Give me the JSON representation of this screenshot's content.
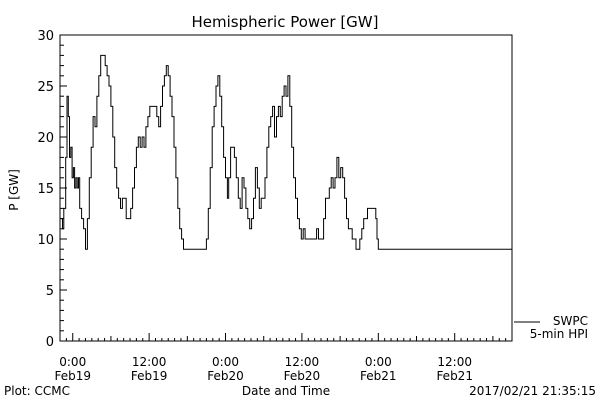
{
  "chart_data": {
    "type": "line",
    "title": "Hemispheric Power [GW]",
    "xlabel": "Date and Time",
    "ylabel": "P [GW]",
    "ylim": [
      0,
      30
    ],
    "xlim_hours": [
      -2,
      69
    ],
    "yticks": [
      0,
      5,
      10,
      15,
      20,
      25,
      30
    ],
    "x_tick_labels": [
      {
        "hour": 0,
        "time": "0:00",
        "date": "Feb19"
      },
      {
        "hour": 12,
        "time": "12:00",
        "date": "Feb19"
      },
      {
        "hour": 24,
        "time": "0:00",
        "date": "Feb20"
      },
      {
        "hour": 36,
        "time": "12:00",
        "date": "Feb20"
      },
      {
        "hour": 48,
        "time": "0:00",
        "date": "Feb21"
      },
      {
        "hour": 60,
        "time": "12:00",
        "date": "Feb21"
      }
    ],
    "legend": {
      "placement": "bottom-right",
      "entries": [
        "SWPC",
        "5-min HPI"
      ]
    },
    "series": [
      {
        "name": "SWPC",
        "color": "#000000",
        "points": [
          [
            -1.8,
            12
          ],
          [
            -1.6,
            11
          ],
          [
            -1.4,
            13
          ],
          [
            -1.1,
            18
          ],
          [
            -0.9,
            24
          ],
          [
            -0.7,
            22
          ],
          [
            -0.5,
            18
          ],
          [
            -0.3,
            19
          ],
          [
            -0.1,
            16
          ],
          [
            0.1,
            17
          ],
          [
            0.3,
            15
          ],
          [
            0.5,
            16
          ],
          [
            0.7,
            15
          ],
          [
            0.9,
            16
          ],
          [
            1.1,
            13
          ],
          [
            1.4,
            12
          ],
          [
            1.7,
            11
          ],
          [
            2.0,
            9
          ],
          [
            2.3,
            12
          ],
          [
            2.6,
            16
          ],
          [
            2.9,
            19
          ],
          [
            3.2,
            22
          ],
          [
            3.5,
            21
          ],
          [
            3.8,
            24
          ],
          [
            4.1,
            26
          ],
          [
            4.4,
            28
          ],
          [
            4.8,
            28
          ],
          [
            5.1,
            27
          ],
          [
            5.4,
            26
          ],
          [
            5.7,
            25
          ],
          [
            6.0,
            23
          ],
          [
            6.3,
            20
          ],
          [
            6.6,
            17
          ],
          [
            6.9,
            15
          ],
          [
            7.2,
            14
          ],
          [
            7.5,
            13
          ],
          [
            7.8,
            14
          ],
          [
            8.1,
            14
          ],
          [
            8.4,
            12
          ],
          [
            8.8,
            12
          ],
          [
            9.1,
            13
          ],
          [
            9.4,
            15
          ],
          [
            9.7,
            17
          ],
          [
            10.0,
            19
          ],
          [
            10.3,
            20
          ],
          [
            10.6,
            19
          ],
          [
            10.9,
            20
          ],
          [
            11.2,
            19
          ],
          [
            11.5,
            21
          ],
          [
            11.8,
            22
          ],
          [
            12.1,
            23
          ],
          [
            12.5,
            23
          ],
          [
            12.9,
            23
          ],
          [
            13.2,
            22
          ],
          [
            13.5,
            21
          ],
          [
            13.8,
            23
          ],
          [
            14.1,
            25
          ],
          [
            14.4,
            26
          ],
          [
            14.7,
            27
          ],
          [
            15.0,
            26
          ],
          [
            15.3,
            24
          ],
          [
            15.6,
            22
          ],
          [
            15.9,
            19
          ],
          [
            16.2,
            16
          ],
          [
            16.5,
            13
          ],
          [
            16.8,
            11
          ],
          [
            17.1,
            10
          ],
          [
            17.4,
            9
          ],
          [
            18.0,
            9
          ],
          [
            19.0,
            9
          ],
          [
            20.0,
            9
          ],
          [
            20.6,
            9
          ],
          [
            21.0,
            10
          ],
          [
            21.3,
            13
          ],
          [
            21.6,
            17
          ],
          [
            21.9,
            21
          ],
          [
            22.2,
            23
          ],
          [
            22.5,
            25
          ],
          [
            22.8,
            26
          ],
          [
            23.1,
            24
          ],
          [
            23.4,
            21
          ],
          [
            23.7,
            18
          ],
          [
            24.0,
            16
          ],
          [
            24.3,
            14
          ],
          [
            24.5,
            16
          ],
          [
            24.8,
            19
          ],
          [
            25.1,
            19
          ],
          [
            25.4,
            18
          ],
          [
            25.7,
            16
          ],
          [
            26.0,
            14
          ],
          [
            26.3,
            13
          ],
          [
            26.6,
            16
          ],
          [
            26.9,
            15
          ],
          [
            27.2,
            13
          ],
          [
            27.5,
            12
          ],
          [
            27.8,
            11
          ],
          [
            28.1,
            12
          ],
          [
            28.4,
            14
          ],
          [
            28.7,
            17
          ],
          [
            29.0,
            15
          ],
          [
            29.3,
            13
          ],
          [
            29.6,
            14
          ],
          [
            29.9,
            14
          ],
          [
            30.2,
            16
          ],
          [
            30.5,
            19
          ],
          [
            30.8,
            21
          ],
          [
            31.1,
            22
          ],
          [
            31.4,
            23
          ],
          [
            31.7,
            20
          ],
          [
            32.0,
            22
          ],
          [
            32.3,
            23
          ],
          [
            32.6,
            22
          ],
          [
            32.9,
            24
          ],
          [
            33.2,
            25
          ],
          [
            33.5,
            24
          ],
          [
            33.8,
            26
          ],
          [
            34.1,
            23
          ],
          [
            34.4,
            19
          ],
          [
            34.7,
            16
          ],
          [
            35.0,
            14
          ],
          [
            35.3,
            12
          ],
          [
            35.6,
            11
          ],
          [
            35.9,
            10
          ],
          [
            36.2,
            11
          ],
          [
            36.5,
            10
          ],
          [
            37.0,
            10
          ],
          [
            37.5,
            10
          ],
          [
            38.0,
            10
          ],
          [
            38.3,
            11
          ],
          [
            38.6,
            10
          ],
          [
            39.0,
            10
          ],
          [
            39.4,
            12
          ],
          [
            39.7,
            14
          ],
          [
            40.0,
            14
          ],
          [
            40.3,
            15
          ],
          [
            40.6,
            16
          ],
          [
            40.9,
            15
          ],
          [
            41.2,
            16
          ],
          [
            41.5,
            18
          ],
          [
            41.8,
            16
          ],
          [
            42.1,
            17
          ],
          [
            42.4,
            16
          ],
          [
            42.7,
            14
          ],
          [
            43.0,
            12
          ],
          [
            43.3,
            11
          ],
          [
            43.6,
            11
          ],
          [
            43.9,
            10
          ],
          [
            44.2,
            10
          ],
          [
            44.5,
            9
          ],
          [
            44.8,
            9
          ],
          [
            45.1,
            10
          ],
          [
            45.4,
            11
          ],
          [
            45.7,
            12
          ],
          [
            46.0,
            12
          ],
          [
            46.3,
            13
          ],
          [
            46.8,
            13
          ],
          [
            47.3,
            13
          ],
          [
            47.6,
            12
          ],
          [
            47.8,
            10
          ],
          [
            48.0,
            9
          ],
          [
            49.0,
            9
          ],
          [
            50.0,
            9
          ],
          [
            51.0,
            9
          ],
          [
            52.0,
            9
          ]
        ]
      }
    ]
  },
  "footer": {
    "left": "Plot: CCMC",
    "right": "2017/02/21 21:35:15"
  }
}
